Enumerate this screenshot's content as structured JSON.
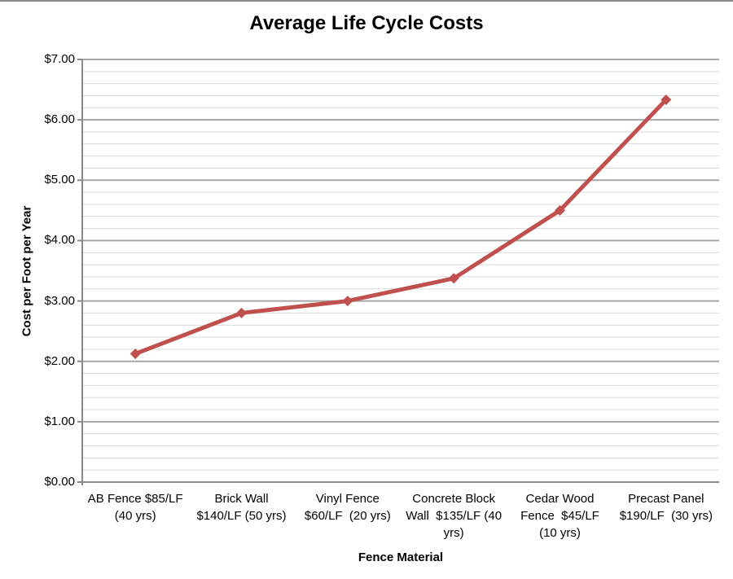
{
  "window": {
    "top_border_color": "#8A8A8A"
  },
  "chart_data": {
    "type": "line",
    "title": "Average Life Cycle Costs",
    "xlabel": "Fence Material",
    "ylabel": "Cost per Foot per Year",
    "categories": [
      "AB Fence $85/LF (40 yrs)",
      "Brick Wall $140/LF (50 yrs)",
      "Vinyl Fence $60/LF  (20 yrs)",
      "Concrete Block Wall  $135/LF (40 yrs)",
      "Cedar Wood Fence  $45/LF (10 yrs)",
      "Precast Panel $190/LF  (30 yrs)"
    ],
    "category_lines": [
      [
        "AB Fence $85/LF",
        "(40 yrs)"
      ],
      [
        "Brick Wall",
        "$140/LF (50 yrs)"
      ],
      [
        "Vinyl Fence",
        "$60/LF  (20 yrs)"
      ],
      [
        "Concrete Block",
        "Wall  $135/LF (40",
        "yrs)"
      ],
      [
        "Cedar Wood",
        "Fence  $45/LF",
        "(10 yrs)"
      ],
      [
        "Precast Panel",
        "$190/LF  (30 yrs)"
      ]
    ],
    "values": [
      2.125,
      2.8,
      3.0,
      3.375,
      4.5,
      6.333
    ],
    "ylim": [
      0,
      7
    ],
    "y_major_step": 1,
    "y_minor_step": 0.2,
    "y_tick_labels": [
      "$0.00",
      "$1.00",
      "$2.00",
      "$3.00",
      "$4.00",
      "$5.00",
      "$6.00",
      "$7.00"
    ],
    "grid": true,
    "legend": "none",
    "marker": "diamond",
    "colors": {
      "series": "#C0504D",
      "major_gridline": "#A6A6A6",
      "minor_gridline": "#D9D9D9",
      "axis_line": "#898989",
      "text": "#000000"
    }
  }
}
